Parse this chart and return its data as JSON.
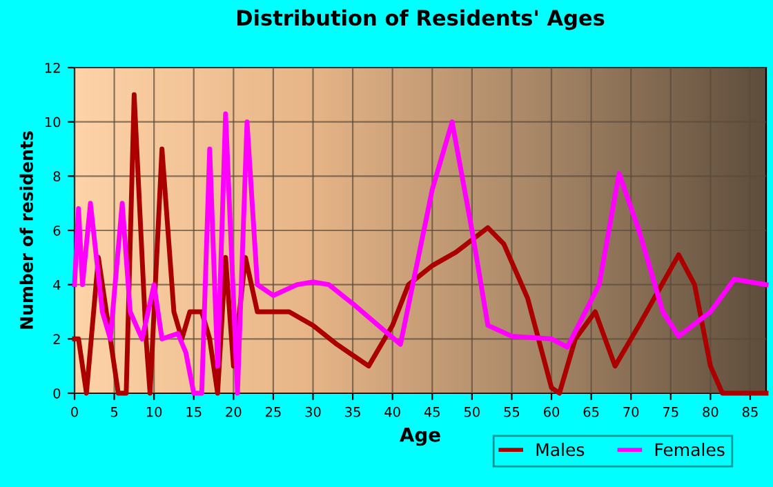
{
  "chart_data": {
    "type": "line",
    "title": "Distribution of Residents' Ages",
    "xlabel": "Age",
    "ylabel": "Number of residents",
    "xlim": [
      0,
      87
    ],
    "xticks": [
      0,
      5,
      10,
      15,
      20,
      25,
      30,
      35,
      40,
      45,
      50,
      55,
      60,
      65,
      70,
      75,
      80,
      85
    ],
    "ylim": [
      0,
      12
    ],
    "yticks": [
      0,
      2,
      4,
      6,
      8,
      10,
      12
    ],
    "grid": true,
    "legend": "bottom right",
    "marker": "none",
    "line_style": "solid",
    "series": [
      {
        "name": "Males",
        "color": "#aa0000",
        "x": [
          0,
          0.5,
          1.5,
          3,
          4.5,
          5.5,
          6.5,
          7.5,
          9,
          9.5,
          11,
          12.5,
          13.5,
          14.5,
          16,
          17,
          18,
          19,
          20,
          21.5,
          23,
          25,
          27,
          30,
          33,
          37,
          40,
          42,
          45,
          48,
          52,
          54,
          57,
          60,
          61,
          63,
          65.5,
          68,
          71,
          76,
          78,
          80,
          81.5,
          87
        ],
        "values": [
          2,
          2,
          0,
          5,
          2,
          0,
          0,
          11,
          2,
          0,
          9,
          3,
          2,
          3,
          3,
          2,
          0,
          5,
          1,
          5,
          3,
          3,
          3,
          2.5,
          1.8,
          1,
          2.5,
          4,
          4.7,
          5.2,
          6.1,
          5.5,
          3.5,
          0.2,
          0,
          2,
          3,
          1,
          2.5,
          5.1,
          4,
          1,
          0,
          0
        ]
      },
      {
        "name": "Females",
        "color": "#ff00ff",
        "x": [
          0,
          0.5,
          1,
          2,
          3.5,
          4.5,
          6,
          7,
          8.5,
          10,
          11,
          13,
          14,
          15,
          16,
          17,
          18,
          19,
          20.5,
          21.7,
          23,
          25,
          28,
          30,
          32,
          35,
          37,
          41,
          45,
          47.5,
          50,
          52,
          55,
          60,
          62,
          66,
          68.5,
          71,
          74,
          76,
          80,
          83,
          87
        ],
        "values": [
          4,
          6.8,
          4,
          7,
          3,
          2,
          7,
          3,
          2,
          4,
          2,
          2.2,
          1.5,
          0,
          0,
          9,
          1,
          10.3,
          0,
          10,
          4,
          3.6,
          4,
          4.1,
          4,
          3.3,
          2.8,
          1.8,
          7.5,
          10,
          6,
          2.5,
          2.1,
          2,
          1.7,
          4,
          8.1,
          6,
          3,
          2.1,
          3,
          4.2,
          4
        ]
      }
    ]
  }
}
